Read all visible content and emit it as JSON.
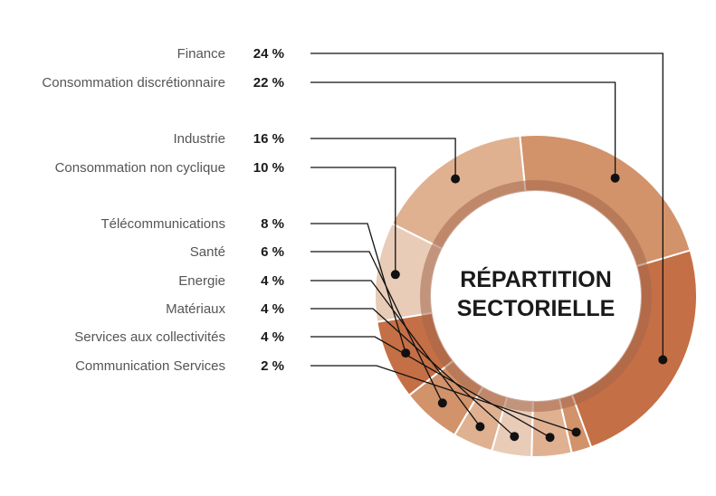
{
  "chart_data": {
    "type": "pie",
    "title_lines": [
      "RÉPARTITION",
      "SECTORIELLE"
    ],
    "unit": "%",
    "categories": [
      "Finance",
      "Consommation discrétionnaire",
      "Industrie",
      "Consommation non cyclique",
      "Télécommunications",
      "Santé",
      "Energie",
      "Matériaux",
      "Services aux collectivités",
      "Communication Services"
    ],
    "values": [
      24,
      22,
      16,
      10,
      8,
      6,
      4,
      4,
      4,
      2
    ],
    "value_labels": [
      "24 %",
      "22 %",
      "16 %",
      "10 %",
      "8 %",
      "6 %",
      "4 %",
      "4 %",
      "4 %",
      "2 %"
    ],
    "colors": [
      "#c46f45",
      "#d2926a",
      "#dfb191",
      "#e8ccb8",
      "#c46f45",
      "#d2926a",
      "#dfb191",
      "#e8ccb8",
      "#dfb191",
      "#d2926a"
    ],
    "inner_ring_color": "#a4664a"
  }
}
